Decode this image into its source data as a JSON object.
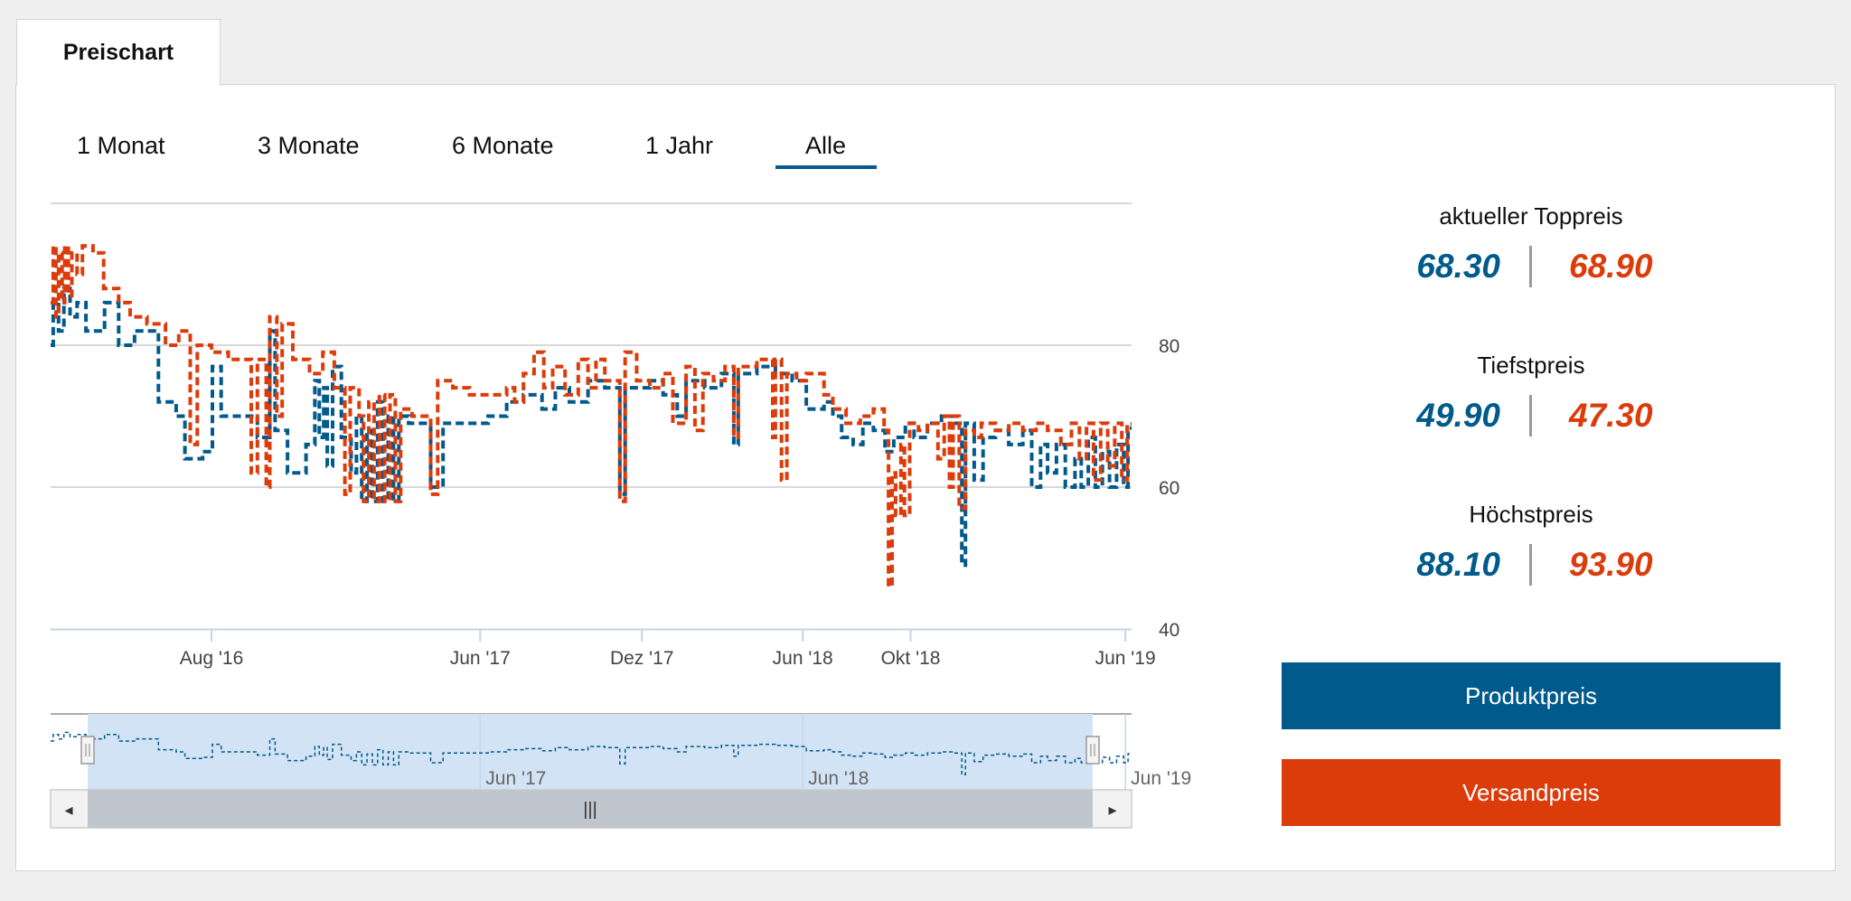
{
  "tab": {
    "label": "Preischart"
  },
  "ranges": [
    {
      "label": "1 Monat",
      "active": false
    },
    {
      "label": "3 Monate",
      "active": false
    },
    {
      "label": "6 Monate",
      "active": false
    },
    {
      "label": "1 Jahr",
      "active": false
    },
    {
      "label": "Alle",
      "active": true
    }
  ],
  "stats": {
    "top": {
      "label": "aktueller Toppreis",
      "product": "68.30",
      "shipping": "68.90"
    },
    "low": {
      "label": "Tiefstpreis",
      "product": "49.90",
      "shipping": "47.30"
    },
    "high": {
      "label": "Höchstpreis",
      "product": "88.10",
      "shipping": "93.90"
    }
  },
  "buttons": {
    "product": "Produktpreis",
    "shipping": "Versandpreis"
  },
  "colors": {
    "product": "#005a8c",
    "shipping": "#dc3b0a",
    "navigator": "#d2e3f5",
    "scrollbar": "#bfc6ce"
  },
  "navigator": {
    "ticks": [
      {
        "label": "Jun '17",
        "x": "2017-06-01"
      },
      {
        "label": "Jun '18",
        "x": "2018-06-01"
      },
      {
        "label": "Jun '19",
        "x": "2019-06-01"
      }
    ],
    "scroll_grip": "|||",
    "left_arrow": "◂",
    "right_arrow": "▸"
  },
  "chart_data": {
    "type": "line",
    "step": true,
    "xlabel": "",
    "ylabel": "",
    "x_range": [
      "2016-02-01",
      "2019-06-08"
    ],
    "ylim": [
      40,
      100
    ],
    "y_ticks": [
      40,
      60,
      80
    ],
    "y_axis_side": "right",
    "grid": true,
    "x_ticks": [
      {
        "label": "Aug '16",
        "x": "2016-08-01"
      },
      {
        "label": "Jun '17",
        "x": "2017-06-01"
      },
      {
        "label": "Dez '17",
        "x": "2017-12-01"
      },
      {
        "label": "Jun '18",
        "x": "2018-06-01"
      },
      {
        "label": "Okt '18",
        "x": "2018-10-01"
      },
      {
        "label": "Jun '19",
        "x": "2019-06-01"
      }
    ],
    "series": [
      {
        "name": "Produktpreis",
        "color": "#005a8c",
        "dash": "dashed",
        "points": [
          [
            "2016-02-01",
            80
          ],
          [
            "2016-02-04",
            86
          ],
          [
            "2016-02-10",
            82
          ],
          [
            "2016-02-16",
            88
          ],
          [
            "2016-02-23",
            84
          ],
          [
            "2016-03-02",
            86
          ],
          [
            "2016-03-12",
            82
          ],
          [
            "2016-04-02",
            86
          ],
          [
            "2016-04-18",
            80
          ],
          [
            "2016-05-06",
            82
          ],
          [
            "2016-06-02",
            72
          ],
          [
            "2016-06-22",
            70
          ],
          [
            "2016-07-02",
            64
          ],
          [
            "2016-07-22",
            65
          ],
          [
            "2016-08-02",
            77
          ],
          [
            "2016-08-12",
            70
          ],
          [
            "2016-09-22",
            67
          ],
          [
            "2016-10-06",
            82
          ],
          [
            "2016-10-12",
            68
          ],
          [
            "2016-10-26",
            62
          ],
          [
            "2016-11-16",
            66
          ],
          [
            "2016-11-26",
            75
          ],
          [
            "2016-12-01",
            67
          ],
          [
            "2016-12-06",
            74
          ],
          [
            "2016-12-10",
            63
          ],
          [
            "2016-12-16",
            77
          ],
          [
            "2016-12-26",
            67
          ],
          [
            "2017-01-06",
            62
          ],
          [
            "2017-01-12",
            70
          ],
          [
            "2017-01-18",
            58
          ],
          [
            "2017-01-24",
            68
          ],
          [
            "2017-01-30",
            58
          ],
          [
            "2017-02-05",
            72
          ],
          [
            "2017-02-11",
            58
          ],
          [
            "2017-02-17",
            70
          ],
          [
            "2017-02-23",
            58
          ],
          [
            "2017-03-01",
            70
          ],
          [
            "2017-03-12",
            69
          ],
          [
            "2017-04-06",
            60
          ],
          [
            "2017-04-20",
            69
          ],
          [
            "2017-05-15",
            69
          ],
          [
            "2017-06-10",
            70
          ],
          [
            "2017-07-01",
            72
          ],
          [
            "2017-07-20",
            73
          ],
          [
            "2017-08-10",
            71
          ],
          [
            "2017-08-25",
            74
          ],
          [
            "2017-09-10",
            72
          ],
          [
            "2017-10-01",
            75
          ],
          [
            "2017-10-20",
            74
          ],
          [
            "2017-11-06",
            59
          ],
          [
            "2017-11-12",
            74
          ],
          [
            "2017-12-10",
            75
          ],
          [
            "2017-12-25",
            73
          ],
          [
            "2018-01-10",
            70
          ],
          [
            "2018-01-20",
            75
          ],
          [
            "2018-02-10",
            74
          ],
          [
            "2018-03-01",
            76
          ],
          [
            "2018-03-15",
            66
          ],
          [
            "2018-03-20",
            76
          ],
          [
            "2018-04-10",
            77
          ],
          [
            "2018-05-01",
            76
          ],
          [
            "2018-05-20",
            75
          ],
          [
            "2018-06-05",
            71
          ],
          [
            "2018-06-25",
            72
          ],
          [
            "2018-07-05",
            70
          ],
          [
            "2018-07-15",
            67
          ],
          [
            "2018-07-28",
            66
          ],
          [
            "2018-08-08",
            69
          ],
          [
            "2018-08-20",
            68
          ],
          [
            "2018-09-02",
            65
          ],
          [
            "2018-09-12",
            67
          ],
          [
            "2018-09-25",
            69
          ],
          [
            "2018-10-05",
            67
          ],
          [
            "2018-10-20",
            69
          ],
          [
            "2018-11-05",
            70
          ],
          [
            "2018-11-20",
            69
          ],
          [
            "2018-11-28",
            49
          ],
          [
            "2018-12-02",
            69
          ],
          [
            "2018-12-12",
            61
          ],
          [
            "2018-12-22",
            67
          ],
          [
            "2019-01-05",
            68
          ],
          [
            "2019-01-20",
            66
          ],
          [
            "2019-02-05",
            68
          ],
          [
            "2019-02-15",
            60
          ],
          [
            "2019-02-25",
            66
          ],
          [
            "2019-03-05",
            62
          ],
          [
            "2019-03-15",
            66
          ],
          [
            "2019-03-25",
            60
          ],
          [
            "2019-04-05",
            64
          ],
          [
            "2019-04-12",
            60
          ],
          [
            "2019-04-20",
            67
          ],
          [
            "2019-04-28",
            60
          ],
          [
            "2019-05-06",
            65
          ],
          [
            "2019-05-14",
            60
          ],
          [
            "2019-05-22",
            66
          ],
          [
            "2019-05-30",
            60
          ],
          [
            "2019-06-04",
            68.3
          ],
          [
            "2019-06-08",
            68.3
          ]
        ]
      },
      {
        "name": "Versandpreis",
        "color": "#dc3b0a",
        "dash": "dashed",
        "points": [
          [
            "2016-02-01",
            86
          ],
          [
            "2016-02-04",
            94
          ],
          [
            "2016-02-07",
            84
          ],
          [
            "2016-02-10",
            93
          ],
          [
            "2016-02-14",
            86
          ],
          [
            "2016-02-17",
            94
          ],
          [
            "2016-02-21",
            87
          ],
          [
            "2016-02-25",
            93
          ],
          [
            "2016-03-02",
            90
          ],
          [
            "2016-03-08",
            94
          ],
          [
            "2016-03-20",
            93
          ],
          [
            "2016-04-01",
            88
          ],
          [
            "2016-04-18",
            86
          ],
          [
            "2016-05-01",
            84
          ],
          [
            "2016-05-20",
            83
          ],
          [
            "2016-06-10",
            80
          ],
          [
            "2016-06-25",
            82
          ],
          [
            "2016-07-08",
            66
          ],
          [
            "2016-07-16",
            80
          ],
          [
            "2016-08-01",
            79
          ],
          [
            "2016-08-20",
            78
          ],
          [
            "2016-09-15",
            62
          ],
          [
            "2016-09-22",
            78
          ],
          [
            "2016-10-02",
            60
          ],
          [
            "2016-10-06",
            84
          ],
          [
            "2016-10-14",
            70
          ],
          [
            "2016-10-20",
            83
          ],
          [
            "2016-11-01",
            78
          ],
          [
            "2016-11-20",
            76
          ],
          [
            "2016-12-05",
            79
          ],
          [
            "2016-12-18",
            74
          ],
          [
            "2016-12-30",
            59
          ],
          [
            "2017-01-05",
            74
          ],
          [
            "2017-01-15",
            70
          ],
          [
            "2017-01-20",
            58
          ],
          [
            "2017-01-26",
            72
          ],
          [
            "2017-02-01",
            58
          ],
          [
            "2017-02-07",
            73
          ],
          [
            "2017-02-13",
            58
          ],
          [
            "2017-02-19",
            73
          ],
          [
            "2017-02-25",
            58
          ],
          [
            "2017-03-03",
            71
          ],
          [
            "2017-03-16",
            70
          ],
          [
            "2017-04-06",
            59
          ],
          [
            "2017-04-14",
            75
          ],
          [
            "2017-05-01",
            74
          ],
          [
            "2017-05-20",
            73
          ],
          [
            "2017-06-10",
            73
          ],
          [
            "2017-07-01",
            74
          ],
          [
            "2017-07-10",
            72
          ],
          [
            "2017-07-20",
            76
          ],
          [
            "2017-08-01",
            79
          ],
          [
            "2017-08-12",
            74
          ],
          [
            "2017-08-22",
            77
          ],
          [
            "2017-09-05",
            73
          ],
          [
            "2017-09-20",
            78
          ],
          [
            "2017-10-01",
            74
          ],
          [
            "2017-10-10",
            78
          ],
          [
            "2017-10-20",
            75
          ],
          [
            "2017-11-06",
            58
          ],
          [
            "2017-11-12",
            79
          ],
          [
            "2017-11-25",
            75
          ],
          [
            "2017-12-10",
            74
          ],
          [
            "2017-12-25",
            76
          ],
          [
            "2018-01-05",
            69
          ],
          [
            "2018-01-20",
            77
          ],
          [
            "2018-01-30",
            68
          ],
          [
            "2018-02-08",
            76
          ],
          [
            "2018-02-20",
            75
          ],
          [
            "2018-03-05",
            77
          ],
          [
            "2018-03-15",
            67
          ],
          [
            "2018-03-20",
            77
          ],
          [
            "2018-04-10",
            78
          ],
          [
            "2018-04-28",
            67
          ],
          [
            "2018-05-01",
            78
          ],
          [
            "2018-05-08",
            61
          ],
          [
            "2018-05-14",
            76
          ],
          [
            "2018-05-25",
            75
          ],
          [
            "2018-06-05",
            76
          ],
          [
            "2018-06-25",
            73
          ],
          [
            "2018-07-05",
            71
          ],
          [
            "2018-07-20",
            69
          ],
          [
            "2018-08-05",
            70
          ],
          [
            "2018-08-20",
            71
          ],
          [
            "2018-09-01",
            68
          ],
          [
            "2018-09-06",
            46
          ],
          [
            "2018-09-10",
            62
          ],
          [
            "2018-09-14",
            56
          ],
          [
            "2018-09-20",
            66
          ],
          [
            "2018-09-24",
            56
          ],
          [
            "2018-09-30",
            69
          ],
          [
            "2018-10-10",
            68
          ],
          [
            "2018-10-20",
            69
          ],
          [
            "2018-11-01",
            64
          ],
          [
            "2018-11-08",
            70
          ],
          [
            "2018-11-14",
            60
          ],
          [
            "2018-11-18",
            70
          ],
          [
            "2018-11-25",
            57
          ],
          [
            "2018-12-02",
            68
          ],
          [
            "2018-12-12",
            67
          ],
          [
            "2018-12-20",
            69
          ],
          [
            "2019-01-05",
            68
          ],
          [
            "2019-01-20",
            69
          ],
          [
            "2019-02-05",
            68
          ],
          [
            "2019-02-20",
            69
          ],
          [
            "2019-03-05",
            68
          ],
          [
            "2019-03-20",
            66
          ],
          [
            "2019-04-01",
            69
          ],
          [
            "2019-04-10",
            64
          ],
          [
            "2019-04-18",
            69
          ],
          [
            "2019-04-26",
            61
          ],
          [
            "2019-05-04",
            69
          ],
          [
            "2019-05-12",
            63
          ],
          [
            "2019-05-20",
            69
          ],
          [
            "2019-05-28",
            61
          ],
          [
            "2019-06-03",
            68.9
          ],
          [
            "2019-06-08",
            68.9
          ]
        ]
      }
    ]
  }
}
